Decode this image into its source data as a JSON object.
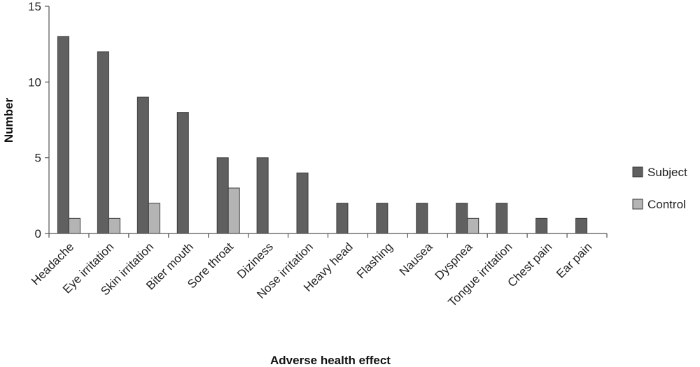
{
  "chart_data": {
    "type": "bar",
    "title": "",
    "xlabel": "Adverse health effect",
    "ylabel": "Number",
    "ylim": [
      0,
      15
    ],
    "yticks": [
      0,
      5,
      10,
      15
    ],
    "grid": false,
    "legend_position": "right",
    "categories": [
      "Headache",
      "Eye irritation",
      "Skin irritation",
      "Biter mouth",
      "Sore throat",
      "Diziness",
      "Nose irritation",
      "Heavy head",
      "Flashing",
      "Nausea",
      "Dyspnea",
      "Tongue irritation",
      "Chest pain",
      "Ear pain"
    ],
    "series": [
      {
        "name": "Subject",
        "color": "#606060",
        "values": [
          13,
          12,
          9,
          8,
          5,
          5,
          4,
          2,
          2,
          2,
          2,
          2,
          1,
          1
        ]
      },
      {
        "name": "Control",
        "color": "#b4b4b4",
        "values": [
          1,
          1,
          2,
          0,
          3,
          0,
          0,
          0,
          0,
          0,
          1,
          0,
          0,
          0
        ]
      }
    ]
  }
}
